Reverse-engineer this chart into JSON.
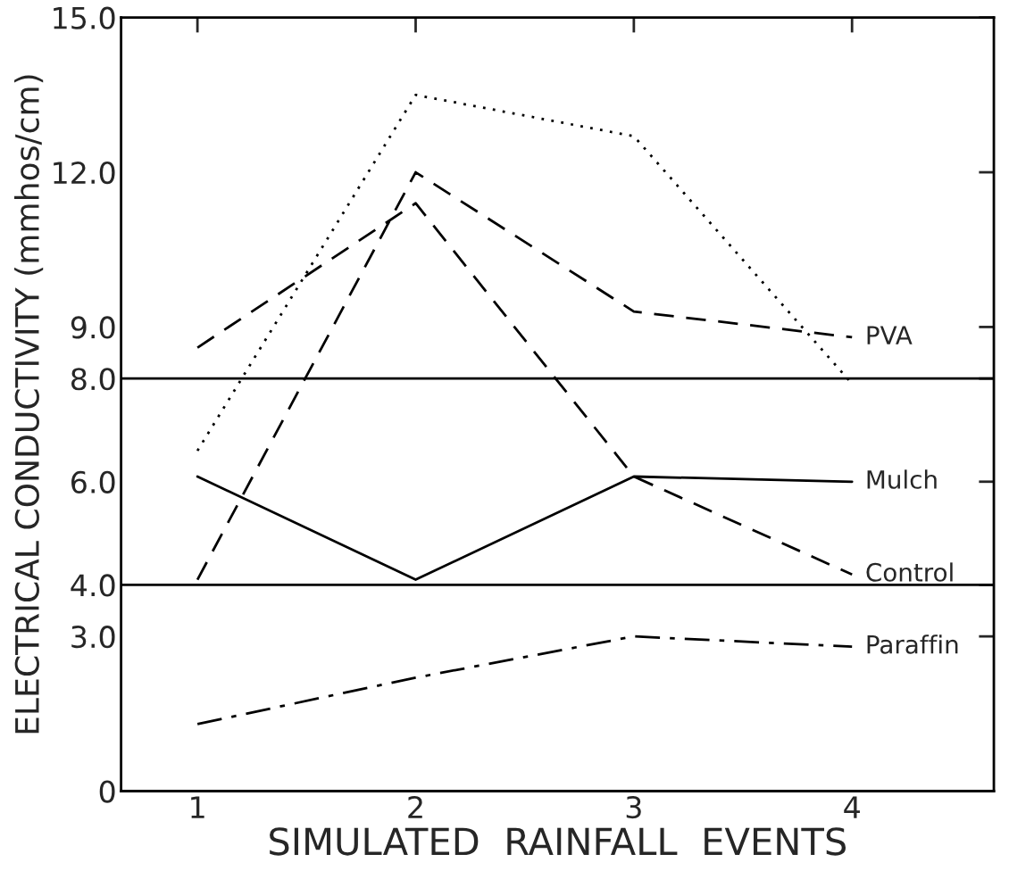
{
  "chart_data": {
    "type": "line",
    "xlabel": "SIMULATED  RAINFALL  EVENTS",
    "ylabel": "ELECTRICAL CONDUCTIVITY (mmhos/cm)",
    "x": [
      1,
      2,
      3,
      4
    ],
    "xlim": [
      0.65,
      4.65
    ],
    "xticks": [
      1,
      2,
      3,
      4
    ],
    "ylim": [
      0,
      15
    ],
    "yticks": [
      {
        "value": 0,
        "label": "0"
      },
      {
        "value": 3,
        "label": "3.0"
      },
      {
        "value": 4,
        "label": "4.0"
      },
      {
        "value": 6,
        "label": "6.0"
      },
      {
        "value": 8,
        "label": "8.0"
      },
      {
        "value": 9,
        "label": "9.0"
      },
      {
        "value": 12,
        "label": "12.0"
      },
      {
        "value": 15,
        "label": "15.0"
      }
    ],
    "grid": false,
    "legend": false,
    "marker": "none",
    "ref_lines": [
      {
        "axis": "y",
        "value": 8,
        "color": "#000000",
        "line_style": "solid"
      },
      {
        "axis": "y",
        "value": 4,
        "color": "#000000",
        "line_style": "solid"
      }
    ],
    "series": [
      {
        "color": "#000000",
        "line_style": "dotted",
        "values": [
          6.6,
          13.5,
          12.7,
          7.9
        ]
      },
      {
        "name": "PVA",
        "color": "#000000",
        "line_style": "dashed",
        "values": [
          4.1,
          12.0,
          9.3,
          8.8
        ]
      },
      {
        "name": "Control",
        "color": "#000000",
        "line_style": "dashed",
        "values": [
          8.6,
          11.4,
          6.1,
          4.2
        ]
      },
      {
        "name": "Mulch",
        "color": "#000000",
        "line_style": "solid",
        "values": [
          6.1,
          4.1,
          6.1,
          6.0
        ]
      },
      {
        "name": "Paraffin",
        "color": "#000000",
        "line_style": "dashdot",
        "values": [
          1.3,
          2.2,
          3.0,
          2.8
        ]
      }
    ]
  }
}
